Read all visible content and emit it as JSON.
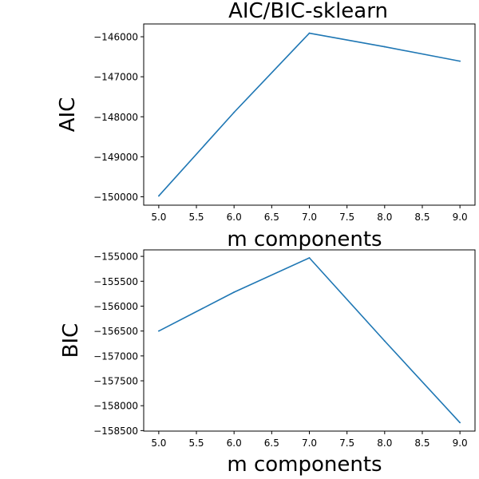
{
  "figure": {
    "title": "AIC/BIC-sklearn"
  },
  "chart_data": [
    {
      "type": "line",
      "title": "AIC/BIC-sklearn",
      "xlabel": "m components",
      "ylabel": "AIC",
      "x": [
        5,
        6,
        7,
        8,
        9
      ],
      "series": [
        {
          "values": [
            -149980,
            -147890,
            -145910,
            -146250,
            -146610
          ],
          "color": "#1f77b4"
        }
      ],
      "xlim": [
        4.8,
        9.2
      ],
      "ylim": [
        -150210,
        -145680
      ],
      "xticks": [
        "5.0",
        "5.5",
        "6.0",
        "6.5",
        "7.0",
        "7.5",
        "8.0",
        "8.5",
        "9.0"
      ],
      "xtick_values": [
        5.0,
        5.5,
        6.0,
        6.5,
        7.0,
        7.5,
        8.0,
        8.5,
        9.0
      ],
      "yticks": [
        "−150000",
        "−149000",
        "−148000",
        "−147000",
        "−146000"
      ],
      "ytick_values": [
        -150000,
        -149000,
        -148000,
        -147000,
        -146000
      ],
      "grid": false
    },
    {
      "type": "line",
      "title": "",
      "xlabel": "m components",
      "ylabel": "BIC",
      "x": [
        5,
        6,
        7,
        8,
        9
      ],
      "series": [
        {
          "values": [
            -156500,
            -155720,
            -155030,
            -156700,
            -158340
          ],
          "color": "#1f77b4"
        }
      ],
      "xlim": [
        4.8,
        9.2
      ],
      "ylim": [
        -158510,
        -154870
      ],
      "xticks": [
        "5.0",
        "5.5",
        "6.0",
        "6.5",
        "7.0",
        "7.5",
        "8.0",
        "8.5",
        "9.0"
      ],
      "xtick_values": [
        5.0,
        5.5,
        6.0,
        6.5,
        7.0,
        7.5,
        8.0,
        8.5,
        9.0
      ],
      "yticks": [
        "−158500",
        "−158000",
        "−157500",
        "−157000",
        "−156500",
        "−156000",
        "−155500",
        "−155000"
      ],
      "ytick_values": [
        -158500,
        -158000,
        -157500,
        -157000,
        -156500,
        -156000,
        -155500,
        -155000
      ],
      "grid": false
    }
  ]
}
